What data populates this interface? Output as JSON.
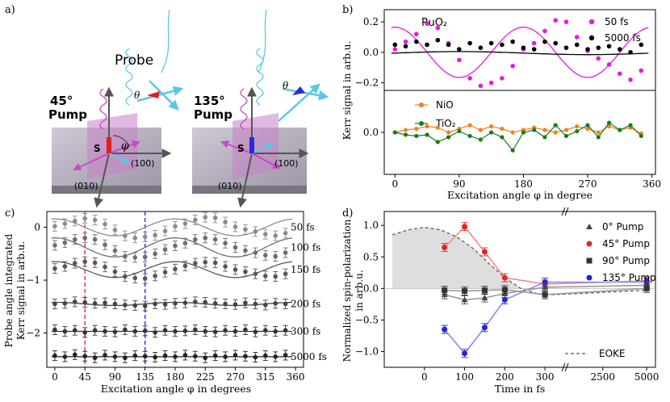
{
  "panel_labels": {
    "a": "a)",
    "b": "b)",
    "c": "c)",
    "d": "d)"
  },
  "panel_a": {
    "probe_label": "Probe",
    "pump45_label_line1": "45°",
    "pump45_label_line2": "Pump",
    "pump135_label_line1": "135°",
    "pump135_label_line2": "Pump",
    "spin_label": "S",
    "theta_label": "θ",
    "phi_label": "φ",
    "axis_100": "(100)",
    "axis_010": "(010)"
  },
  "chart_data": [
    {
      "id": "b_top",
      "type": "scatter",
      "title": "RuO₂",
      "ylabel": "Kerr signal in arb.u.",
      "ylim": [
        -0.25,
        0.28
      ],
      "yticks": [
        -0.2,
        0.0,
        0.2
      ],
      "ytick_labels": [
        "−0.2",
        "0.0",
        "0.2"
      ],
      "legend": [
        "50 fs",
        "5000 fs"
      ],
      "colors": {
        "50 fs": "#e619e6",
        "5000 fs": "#000000"
      },
      "series": [
        {
          "name": "50 fs",
          "x": [
            0,
            15,
            30,
            45,
            60,
            75,
            90,
            105,
            120,
            135,
            150,
            165,
            180,
            195,
            210,
            225,
            240,
            255,
            270,
            285,
            300,
            315,
            330,
            345
          ],
          "y": [
            0.02,
            0.07,
            0.12,
            0.19,
            0.16,
            0.06,
            -0.05,
            -0.17,
            -0.22,
            -0.2,
            -0.17,
            -0.09,
            0.02,
            0.06,
            0.14,
            0.21,
            0.2,
            0.1,
            0.01,
            -0.04,
            -0.08,
            -0.14,
            -0.18,
            -0.12
          ],
          "fit": {
            "amp": 0.165,
            "phase_deg": 90,
            "period_deg": 180
          }
        },
        {
          "name": "5000 fs",
          "x": [
            0,
            15,
            30,
            45,
            60,
            75,
            90,
            105,
            120,
            135,
            150,
            165,
            180,
            195,
            210,
            225,
            240,
            255,
            270,
            285,
            300,
            315,
            330,
            345
          ],
          "y": [
            0.05,
            0.04,
            0.07,
            0.05,
            0.08,
            0.05,
            0.02,
            0.06,
            0.03,
            0.06,
            0.05,
            0.07,
            0.03,
            0.02,
            0.07,
            0.06,
            0.03,
            0.05,
            0.02,
            0.03,
            0.04,
            0.02,
            0.0,
            0.05
          ],
          "fit": {
            "amp": 0.02,
            "phase_deg": 0,
            "period_deg": 360
          }
        }
      ]
    },
    {
      "id": "b_bottom",
      "type": "line",
      "xlabel": "Excitation angle φ in degree",
      "xticks": [
        0,
        90,
        180,
        270,
        360
      ],
      "yticks": [
        0.0
      ],
      "ytick_labels": [
        "0.0"
      ],
      "ylim": [
        -0.35,
        0.35
      ],
      "legend": [
        "NiO",
        "TiO₂"
      ],
      "colors": {
        "NiO": "#f57f20",
        "TiO₂": "#1a7a1a"
      },
      "series": [
        {
          "name": "NiO",
          "x": [
            0,
            15,
            30,
            45,
            60,
            75,
            90,
            105,
            120,
            135,
            150,
            165,
            180,
            195,
            210,
            225,
            240,
            255,
            270,
            285,
            300,
            315,
            330,
            345
          ],
          "y": [
            0.0,
            0.02,
            0.03,
            0.05,
            0.04,
            0.0,
            0.03,
            0.06,
            0.02,
            0.05,
            0.03,
            0.0,
            0.02,
            0.04,
            0.02,
            0.0,
            0.02,
            0.05,
            0.03,
            0.0,
            0.05,
            0.02,
            0.04,
            -0.01
          ]
        },
        {
          "name": "TiO₂",
          "x": [
            0,
            15,
            30,
            45,
            60,
            75,
            90,
            105,
            120,
            135,
            150,
            165,
            180,
            195,
            210,
            225,
            240,
            255,
            270,
            285,
            300,
            315,
            330,
            345
          ],
          "y": [
            0.0,
            -0.02,
            -0.03,
            -0.02,
            -0.08,
            -0.04,
            0.01,
            -0.03,
            -0.06,
            0.0,
            -0.04,
            -0.15,
            0.0,
            0.02,
            -0.04,
            0.06,
            -0.03,
            0.01,
            0.06,
            -0.04,
            0.08,
            0.02,
            0.06,
            -0.03
          ]
        }
      ]
    },
    {
      "id": "c",
      "type": "scatter",
      "xlabel": "Excitation angle φ in degrees",
      "ylabel_line1": "Probe angle integrated",
      "ylabel_line2": "Kerr signal in arb.u.",
      "xticks": [
        0,
        45,
        90,
        135,
        180,
        225,
        270,
        315,
        360
      ],
      "yticks": [
        0,
        -1,
        -2
      ],
      "ytick_labels": [
        "0",
        "−1",
        "−2"
      ],
      "ylim": [
        -2.65,
        0.3
      ],
      "xlim": [
        -12,
        372
      ],
      "vlines": [
        {
          "x": 45,
          "color": "#d42020"
        },
        {
          "x": 135,
          "color": "#2020d4"
        }
      ],
      "x": [
        0,
        15,
        30,
        45,
        60,
        75,
        90,
        105,
        120,
        135,
        150,
        165,
        180,
        195,
        210,
        225,
        240,
        255,
        270,
        285,
        300,
        315,
        330,
        345
      ],
      "series": [
        {
          "name": "50 fs",
          "offset": 0.0,
          "color": "#8c8c8c",
          "amp": 0.16,
          "phase_deg": 90,
          "y": [
            0.02,
            0.07,
            0.12,
            0.17,
            0.14,
            0.06,
            -0.05,
            -0.16,
            -0.2,
            -0.18,
            -0.15,
            -0.07,
            0.02,
            0.07,
            0.14,
            0.19,
            0.18,
            0.1,
            0.01,
            -0.04,
            -0.08,
            -0.13,
            -0.16,
            -0.11
          ]
        },
        {
          "name": "100 fs",
          "offset": -0.38,
          "color": "#6e6e6e",
          "amp": 0.18,
          "phase_deg": 90,
          "y": [
            0.04,
            0.09,
            0.15,
            0.18,
            0.15,
            0.05,
            -0.06,
            -0.17,
            -0.19,
            -0.18,
            -0.12,
            -0.04,
            0.03,
            0.08,
            0.15,
            0.18,
            0.15,
            0.08,
            0.0,
            -0.06,
            -0.1,
            -0.15,
            -0.17,
            -0.1
          ]
        },
        {
          "name": "150 fs",
          "offset": -0.8,
          "color": "#575757",
          "amp": 0.15,
          "phase_deg": 90,
          "y": [
            0.02,
            0.06,
            0.12,
            0.15,
            0.13,
            0.05,
            -0.04,
            -0.13,
            -0.16,
            -0.17,
            -0.12,
            -0.05,
            0.01,
            0.07,
            0.12,
            0.14,
            0.13,
            0.06,
            0.0,
            -0.04,
            -0.08,
            -0.12,
            -0.13,
            -0.08
          ]
        },
        {
          "name": "200 fs",
          "offset": -1.45,
          "color": "#444444",
          "amp": 0.03,
          "phase_deg": 90,
          "y": [
            0.0,
            0.01,
            0.04,
            0.03,
            0.01,
            0.02,
            0.0,
            -0.02,
            -0.03,
            -0.04,
            0.0,
            -0.01,
            0.01,
            0.02,
            0.04,
            0.03,
            0.01,
            0.0,
            -0.01,
            0.02,
            0.0,
            -0.02,
            0.01,
            0.0
          ]
        },
        {
          "name": "300 fs",
          "offset": -1.97,
          "color": "#333333",
          "amp": 0.0,
          "phase_deg": 0,
          "y": [
            0.03,
            0.0,
            0.02,
            -0.02,
            0.02,
            0.0,
            -0.01,
            0.03,
            0.0,
            0.01,
            -0.02,
            0.02,
            0.0,
            0.01,
            0.03,
            0.0,
            -0.01,
            0.02,
            0.0,
            0.03,
            -0.01,
            0.02,
            0.0,
            0.02
          ]
        },
        {
          "name": "5000 fs",
          "offset": -2.45,
          "color": "#222222",
          "amp": 0.0,
          "phase_deg": 0,
          "y": [
            0.02,
            0.0,
            0.04,
            0.01,
            -0.02,
            0.03,
            0.0,
            -0.02,
            0.02,
            0.01,
            -0.01,
            0.02,
            0.0,
            0.03,
            0.01,
            -0.02,
            0.02,
            0.0,
            0.03,
            0.01,
            -0.01,
            0.02,
            0.0,
            0.03
          ]
        }
      ]
    },
    {
      "id": "d",
      "type": "line",
      "xlabel": "Time in fs",
      "ylabel_line1": "Normalized spin-polarization",
      "ylabel_line2": "in arb.u.",
      "xticks": [
        0,
        100,
        200,
        300,
        2500,
        5000
      ],
      "yticks": [
        1.0,
        0.5,
        0.0,
        -0.5,
        -1.0
      ],
      "ytick_labels": [
        "1.0",
        "0.5",
        "0.0",
        "−0.5",
        "−1.0"
      ],
      "ylim": [
        -1.25,
        1.22
      ],
      "legend": [
        "0° Pump",
        "45° Pump",
        "90° Pump",
        "135° Pump",
        "EOKE"
      ],
      "colors": {
        "0° Pump": "#444444",
        "45° Pump": "#e52525",
        "90° Pump": "#333333",
        "135° Pump": "#2525d8",
        "EOKE": "#555555"
      },
      "series": [
        {
          "name": "45° Pump",
          "marker": "circle",
          "t": [
            50,
            100,
            150,
            200,
            300,
            5000
          ],
          "y": [
            0.65,
            0.98,
            0.58,
            0.17,
            0.07,
            0.12
          ]
        },
        {
          "name": "135° Pump",
          "marker": "circle",
          "t": [
            50,
            100,
            150,
            200,
            300,
            5000
          ],
          "y": [
            -0.65,
            -1.03,
            -0.62,
            -0.18,
            0.1,
            0.1
          ]
        },
        {
          "name": "0° Pump",
          "marker": "triangle",
          "t": [
            50,
            100,
            150,
            200,
            300,
            5000
          ],
          "y": [
            -0.1,
            -0.18,
            -0.15,
            -0.08,
            0.02,
            0.05
          ]
        },
        {
          "name": "90° Pump",
          "marker": "square",
          "t": [
            50,
            100,
            150,
            200,
            300,
            5000
          ],
          "y": [
            -0.03,
            -0.04,
            -0.03,
            -0.02,
            -0.1,
            0.0
          ]
        },
        {
          "name": "EOKE",
          "style": "dashed",
          "t": [
            -80,
            -40,
            0,
            40,
            80,
            120,
            160,
            200,
            240,
            280,
            320,
            360,
            5000
          ],
          "y": [
            0.85,
            0.93,
            0.97,
            0.93,
            0.82,
            0.64,
            0.4,
            0.17,
            0.0,
            -0.08,
            -0.1,
            -0.09,
            -0.03
          ]
        }
      ]
    }
  ]
}
